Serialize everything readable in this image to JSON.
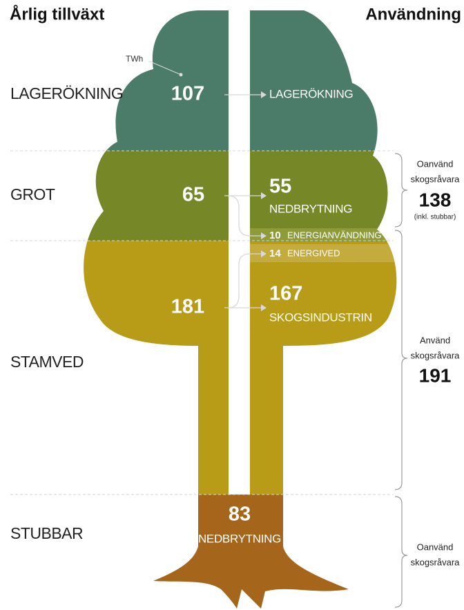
{
  "header": {
    "left_title": "Årlig tillväxt",
    "right_title": "Användning"
  },
  "unit_label": "TWh",
  "growth": [
    {
      "label": "LAGERÖKNING",
      "value": 107
    },
    {
      "label": "GROT",
      "value": 65
    },
    {
      "label": "STAMVED",
      "value": 181
    },
    {
      "label": "STUBBAR",
      "value": 83
    }
  ],
  "usage": {
    "lagerokning": {
      "label": "LAGERÖKNING"
    },
    "grot_nedbrytning": {
      "value": 55,
      "label": "NEDBRYTNING"
    },
    "energianvandning": {
      "value": 10,
      "label": "ENERGIANVÄNDNING"
    },
    "energived": {
      "value": 14,
      "label": "ENERGIVED"
    },
    "skogsindustrin": {
      "value": 167,
      "label": "SKOGSINDUSTRIN"
    },
    "stubbar_nedbrytning": {
      "label": "NEDBRYTNING"
    }
  },
  "brackets": [
    {
      "lines": [
        "Oanvänd",
        "skogsråvara"
      ],
      "value": 138,
      "note": "(inkl. stubbar)"
    },
    {
      "lines": [
        "Använd",
        "skogsråvara"
      ],
      "value": 191
    },
    {
      "lines": [
        "Oanvänd",
        "skogsråvara"
      ]
    }
  ]
}
